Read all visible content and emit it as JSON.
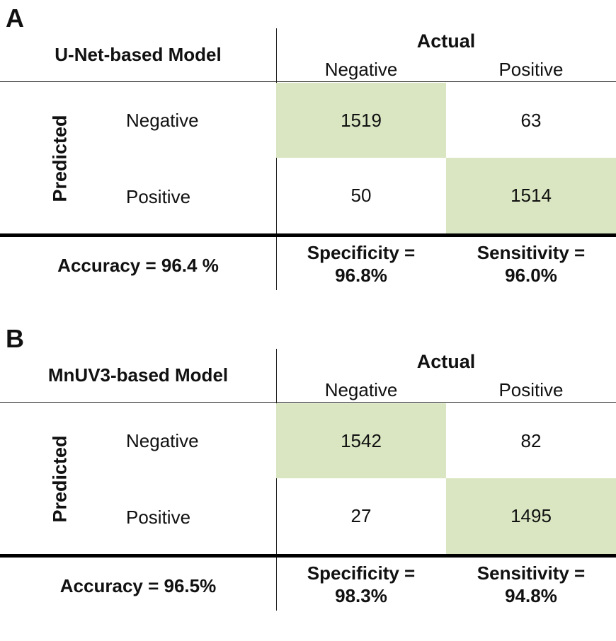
{
  "panels": [
    {
      "letter": "A",
      "model": "U-Net-based Model",
      "actual_label": "Actual",
      "predicted_label": "Predicted",
      "col_negative": "Negative",
      "col_positive": "Positive",
      "row_negative": "Negative",
      "row_positive": "Positive",
      "cells": {
        "tn": "1519",
        "fn": "63",
        "fp": "50",
        "tp": "1514"
      },
      "accuracy": "Accuracy = 96.4 %",
      "specificity_line1": "Specificity =",
      "specificity_line2": "96.8%",
      "sensitivity_line1": "Sensitivity =",
      "sensitivity_line2": "96.0%"
    },
    {
      "letter": "B",
      "model": "MnUV3-based Model",
      "actual_label": "Actual",
      "predicted_label": "Predicted",
      "col_negative": "Negative",
      "col_positive": "Positive",
      "row_negative": "Negative",
      "row_positive": "Positive",
      "cells": {
        "tn": "1542",
        "fn": "82",
        "fp": "27",
        "tp": "1495"
      },
      "accuracy": "Accuracy = 96.5%",
      "specificity_line1": "Specificity =",
      "specificity_line2": "98.3%",
      "sensitivity_line1": "Sensitivity =",
      "sensitivity_line2": "94.8%"
    }
  ],
  "colors": {
    "diagonal_fill": "#d9e6c1",
    "text": "#111111",
    "rules": "#000000"
  }
}
